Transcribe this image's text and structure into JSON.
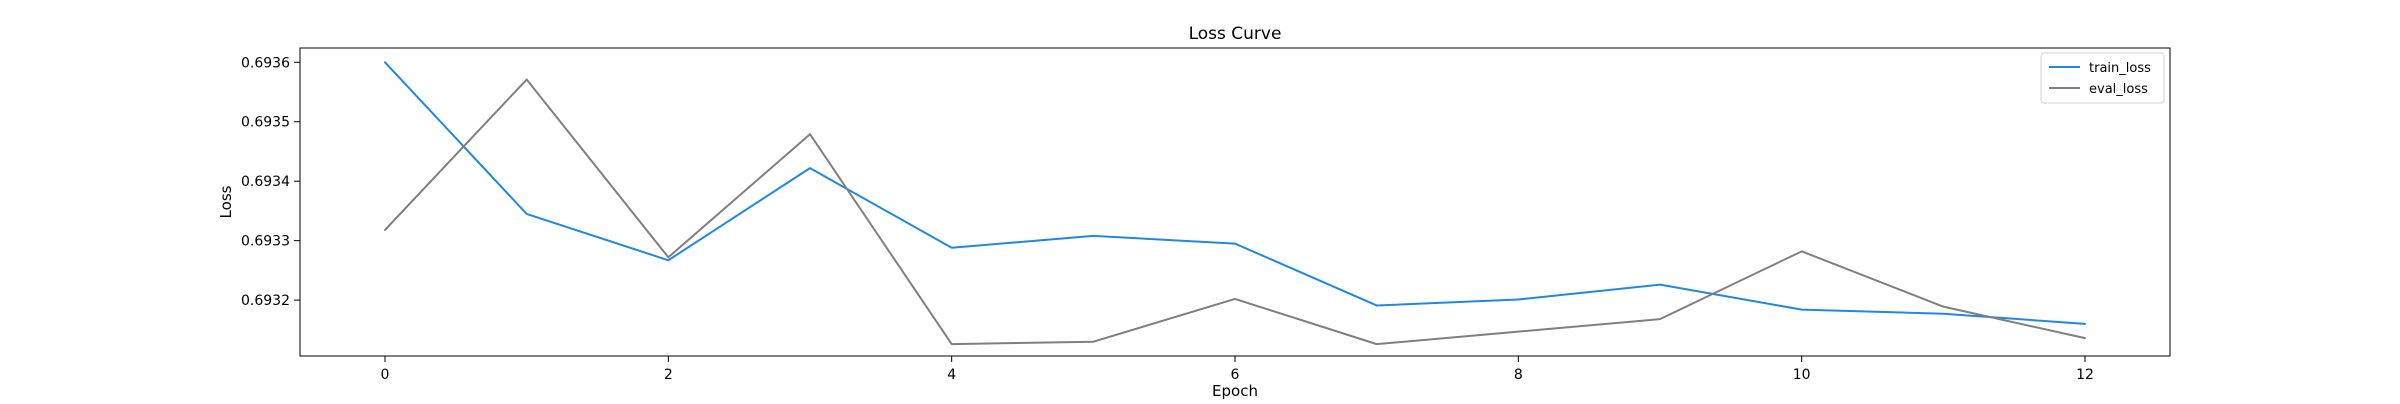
{
  "chart_data": {
    "type": "line",
    "title": "Loss Curve",
    "xlabel": "Epoch",
    "ylabel": "Loss",
    "x": [
      0,
      1,
      2,
      3,
      4,
      5,
      6,
      7,
      8,
      9,
      10,
      11,
      12
    ],
    "xlim": [
      -0.6,
      12.6
    ],
    "ylim": [
      0.693106,
      0.693624
    ],
    "xticks": [
      0,
      2,
      4,
      6,
      8,
      10,
      12
    ],
    "xtick_labels": [
      "0",
      "2",
      "4",
      "6",
      "8",
      "10",
      "12"
    ],
    "yticks": [
      0.6932,
      0.6933,
      0.6934,
      0.6935,
      0.6936
    ],
    "ytick_labels": [
      "0.6932",
      "0.6933",
      "0.6934",
      "0.6935",
      "0.6936"
    ],
    "grid": false,
    "legend_position": "top-right",
    "series": [
      {
        "name": "train_loss",
        "color": "#1f88e5",
        "values": [
          0.6936,
          0.693345,
          0.693267,
          0.693422,
          0.693288,
          0.693308,
          0.693295,
          0.693191,
          0.693201,
          0.693226,
          0.693184,
          0.693177,
          0.69316
        ]
      },
      {
        "name": "eval_loss",
        "color": "#7f7f7f",
        "values": [
          0.693318,
          0.693571,
          0.693272,
          0.693479,
          0.693126,
          0.69313,
          0.693202,
          0.693126,
          0.693147,
          0.693168,
          0.693282,
          0.693189,
          0.693136
        ]
      }
    ]
  }
}
